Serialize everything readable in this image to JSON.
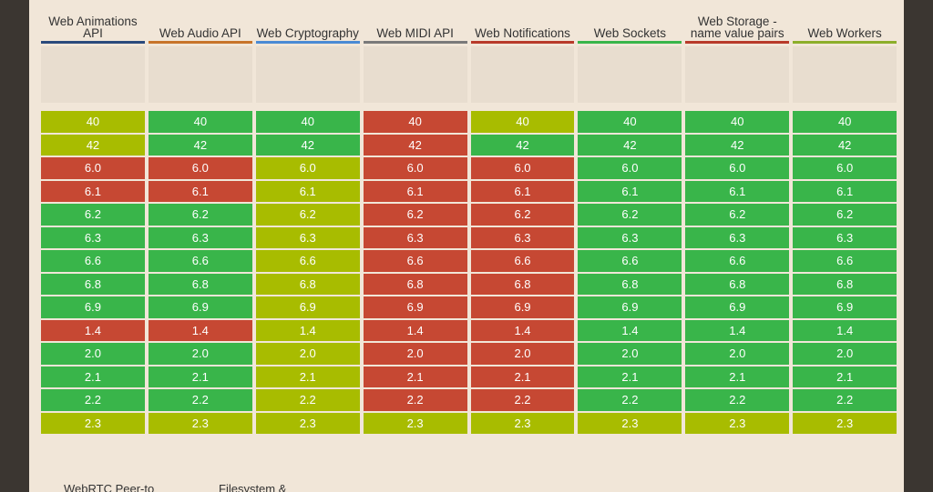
{
  "colors": {
    "green": "#39b54a",
    "red": "#c64833",
    "olive": "#a8bc00"
  },
  "columns": [
    {
      "title": "Web Animations API",
      "accent": "#2a4a7c",
      "cells": [
        [
          "40",
          "olive"
        ],
        [
          "42",
          "olive"
        ],
        [
          "6.0",
          "red"
        ],
        [
          "6.1",
          "red"
        ],
        [
          "6.2",
          "green"
        ],
        [
          "6.3",
          "green"
        ],
        [
          "6.6",
          "green"
        ],
        [
          "6.8",
          "green"
        ],
        [
          "6.9",
          "green"
        ],
        [
          "1.4",
          "red"
        ],
        [
          "2.0",
          "green"
        ],
        [
          "2.1",
          "green"
        ],
        [
          "2.2",
          "green"
        ],
        [
          "2.3",
          "olive"
        ]
      ]
    },
    {
      "title": "Web Audio API",
      "accent": "#c8742a",
      "cells": [
        [
          "40",
          "green"
        ],
        [
          "42",
          "green"
        ],
        [
          "6.0",
          "red"
        ],
        [
          "6.1",
          "red"
        ],
        [
          "6.2",
          "green"
        ],
        [
          "6.3",
          "green"
        ],
        [
          "6.6",
          "green"
        ],
        [
          "6.8",
          "green"
        ],
        [
          "6.9",
          "green"
        ],
        [
          "1.4",
          "red"
        ],
        [
          "2.0",
          "green"
        ],
        [
          "2.1",
          "green"
        ],
        [
          "2.2",
          "green"
        ],
        [
          "2.3",
          "olive"
        ]
      ]
    },
    {
      "title": "Web Cryptography",
      "accent": "#4a8ad4",
      "cells": [
        [
          "40",
          "green"
        ],
        [
          "42",
          "green"
        ],
        [
          "6.0",
          "olive"
        ],
        [
          "6.1",
          "olive"
        ],
        [
          "6.2",
          "olive"
        ],
        [
          "6.3",
          "olive"
        ],
        [
          "6.6",
          "olive"
        ],
        [
          "6.8",
          "olive"
        ],
        [
          "6.9",
          "olive"
        ],
        [
          "1.4",
          "olive"
        ],
        [
          "2.0",
          "olive"
        ],
        [
          "2.1",
          "olive"
        ],
        [
          "2.2",
          "olive"
        ],
        [
          "2.3",
          "olive"
        ]
      ]
    },
    {
      "title": "Web MIDI API",
      "accent": "#7a7a7a",
      "cells": [
        [
          "40",
          "red"
        ],
        [
          "42",
          "red"
        ],
        [
          "6.0",
          "red"
        ],
        [
          "6.1",
          "red"
        ],
        [
          "6.2",
          "red"
        ],
        [
          "6.3",
          "red"
        ],
        [
          "6.6",
          "red"
        ],
        [
          "6.8",
          "red"
        ],
        [
          "6.9",
          "red"
        ],
        [
          "1.4",
          "red"
        ],
        [
          "2.0",
          "red"
        ],
        [
          "2.1",
          "red"
        ],
        [
          "2.2",
          "red"
        ],
        [
          "2.3",
          "olive"
        ]
      ]
    },
    {
      "title": "Web Notifications",
      "accent": "#b83a2a",
      "cells": [
        [
          "40",
          "olive"
        ],
        [
          "42",
          "green"
        ],
        [
          "6.0",
          "red"
        ],
        [
          "6.1",
          "red"
        ],
        [
          "6.2",
          "red"
        ],
        [
          "6.3",
          "red"
        ],
        [
          "6.6",
          "red"
        ],
        [
          "6.8",
          "red"
        ],
        [
          "6.9",
          "red"
        ],
        [
          "1.4",
          "red"
        ],
        [
          "2.0",
          "red"
        ],
        [
          "2.1",
          "red"
        ],
        [
          "2.2",
          "red"
        ],
        [
          "2.3",
          "olive"
        ]
      ]
    },
    {
      "title": "Web Sockets",
      "accent": "#39b54a",
      "cells": [
        [
          "40",
          "green"
        ],
        [
          "42",
          "green"
        ],
        [
          "6.0",
          "green"
        ],
        [
          "6.1",
          "green"
        ],
        [
          "6.2",
          "green"
        ],
        [
          "6.3",
          "green"
        ],
        [
          "6.6",
          "green"
        ],
        [
          "6.8",
          "green"
        ],
        [
          "6.9",
          "green"
        ],
        [
          "1.4",
          "green"
        ],
        [
          "2.0",
          "green"
        ],
        [
          "2.1",
          "green"
        ],
        [
          "2.2",
          "green"
        ],
        [
          "2.3",
          "olive"
        ]
      ]
    },
    {
      "title": "Web Storage - name value pairs",
      "accent": "#b83a2a",
      "cells": [
        [
          "40",
          "green"
        ],
        [
          "42",
          "green"
        ],
        [
          "6.0",
          "green"
        ],
        [
          "6.1",
          "green"
        ],
        [
          "6.2",
          "green"
        ],
        [
          "6.3",
          "green"
        ],
        [
          "6.6",
          "green"
        ],
        [
          "6.8",
          "green"
        ],
        [
          "6.9",
          "green"
        ],
        [
          "1.4",
          "green"
        ],
        [
          "2.0",
          "green"
        ],
        [
          "2.1",
          "green"
        ],
        [
          "2.2",
          "green"
        ],
        [
          "2.3",
          "olive"
        ]
      ]
    },
    {
      "title": "Web Workers",
      "accent": "#8cae2a",
      "cells": [
        [
          "40",
          "green"
        ],
        [
          "42",
          "green"
        ],
        [
          "6.0",
          "green"
        ],
        [
          "6.1",
          "green"
        ],
        [
          "6.2",
          "green"
        ],
        [
          "6.3",
          "green"
        ],
        [
          "6.6",
          "green"
        ],
        [
          "6.8",
          "green"
        ],
        [
          "6.9",
          "green"
        ],
        [
          "1.4",
          "green"
        ],
        [
          "2.0",
          "green"
        ],
        [
          "2.1",
          "green"
        ],
        [
          "2.2",
          "green"
        ],
        [
          "2.3",
          "olive"
        ]
      ]
    }
  ],
  "footer": {
    "left": "WebRTC Peer-to",
    "right": "Filesystem &"
  }
}
